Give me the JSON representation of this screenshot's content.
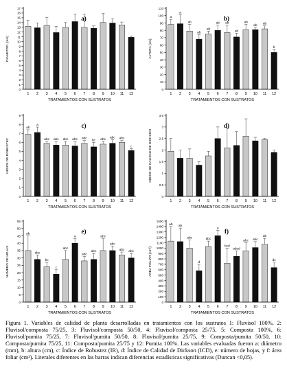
{
  "figure": {
    "caption": "Figura 1. Variables de calidad de planta desarrolladas en tratamientos con los sustratos 1: Fluvisol 100%, 2: Fluvisol/composta 75/25, 3: Fluvisol/composta 50/50, 4: Fluvisol/composta 25/75, 5: Composta 100%, 6: Fluvisol/pumita 75/25, 7: Fluvisol/pumita 50/50, 8: Fluvisol/pumita 25/75, 9: Composta/pumita 50/50, 10: Composta/pumita 75/25, 11: Composta/pumita 25/75 y 12: Pumita 100%. Las variables evaluadas fueron a: diámetro (mm), b: altura (cm), c: Índice de Robustez (IR), d: Índice de Calidad de Dickson (ICD), e: número de hojas, y f: área foliar (cm²). Literales diferentes en las barras indican diferencias estadísticas significativas (Duncan <0,05)."
  },
  "colors": {
    "light_bar": "#c8c8c8",
    "dark_bar": "#111111",
    "axis": "#000000"
  },
  "chart_data": [
    {
      "type": "bar",
      "panel": "a)",
      "xlabel": "TRATAMIENTOS CON SUSTRATOS",
      "ylabel": "DIAMETRO (mm)",
      "categories": [
        "1",
        "2",
        "3",
        "4",
        "5",
        "6",
        "7",
        "8",
        "9",
        "10",
        "11",
        "12"
      ],
      "values": [
        13.2,
        12.9,
        13.4,
        11.9,
        13.0,
        14.2,
        13.0,
        12.8,
        14.0,
        13.9,
        13.5,
        10.9
      ],
      "errors": [
        1.3,
        1.0,
        1.7,
        1.3,
        1.0,
        1.6,
        2.8,
        0.5,
        1.9,
        0.9,
        0.6,
        0.3
      ],
      "dark": [
        false,
        true,
        false,
        true,
        false,
        true,
        false,
        true,
        false,
        true,
        false,
        true
      ],
      "letters": [],
      "ylim": [
        0,
        17
      ],
      "yticks": [
        0,
        1,
        2,
        3,
        4,
        5,
        6,
        7,
        8,
        9,
        10,
        11,
        12,
        13,
        14,
        15,
        16,
        17
      ]
    },
    {
      "type": "bar",
      "panel": "b)",
      "xlabel": "TRATAMIENTOS CON SUSTRATOS",
      "ylabel": "ALTURA (cm)",
      "categories": [
        "1",
        "2",
        "3",
        "4",
        "5",
        "6",
        "7",
        "8",
        "9",
        "10",
        "11",
        "12"
      ],
      "values": [
        88,
        89,
        79,
        68,
        75,
        80,
        77,
        71,
        81,
        81,
        82,
        50
      ],
      "errors": [
        7,
        12,
        9,
        6,
        4,
        7,
        10,
        5,
        7,
        3,
        4,
        4
      ],
      "dark": [
        false,
        true,
        false,
        true,
        false,
        true,
        false,
        true,
        false,
        true,
        false,
        true
      ],
      "letters": [
        "a",
        "a",
        "ab",
        "ab",
        "ab",
        "ab",
        "ab",
        "ab",
        "ab",
        "ab",
        "ab",
        "b"
      ],
      "ylim": [
        0,
        110
      ],
      "yticks": [
        0,
        10,
        20,
        30,
        40,
        50,
        60,
        70,
        80,
        90,
        100,
        110
      ]
    },
    {
      "type": "bar",
      "panel": "c)",
      "xlabel": "TRATAMIENTOS CON SUSTRATOS",
      "ylabel": "INDICE DE ROBUSTEZ",
      "categories": [
        "1",
        "2",
        "3",
        "4",
        "5",
        "6",
        "7",
        "8",
        "9",
        "10",
        "11",
        "12"
      ],
      "values": [
        6.9,
        7.1,
        5.9,
        5.7,
        5.7,
        5.6,
        5.9,
        5.5,
        5.8,
        5.9,
        6.0,
        5.1
      ],
      "errors": [
        0.5,
        0.6,
        0.2,
        0.4,
        0.4,
        0.5,
        0.3,
        0.5,
        0.3,
        0.4,
        0.2,
        0.2
      ],
      "dark": [
        false,
        true,
        false,
        true,
        false,
        true,
        false,
        true,
        false,
        true,
        false,
        true
      ],
      "letters": [
        "ab",
        "a",
        "abc",
        "abc",
        "abc",
        "abc",
        "abc",
        "bc",
        "abc",
        "abc",
        "abc",
        "c"
      ],
      "ylim": [
        0,
        9
      ],
      "yticks": [
        0,
        1,
        2,
        3,
        4,
        5,
        6,
        7,
        8,
        9
      ]
    },
    {
      "type": "bar",
      "panel": "d)",
      "xlabel": "TRATAMIENTOS CON SUSTRATOS",
      "ylabel": "INDICE DE CALIDAD DE DICKSON",
      "categories": [
        "1",
        "2",
        "3",
        "4",
        "5",
        "6",
        "7",
        "8",
        "9",
        "10",
        "11",
        "12"
      ],
      "values": [
        1.95,
        1.65,
        1.65,
        1.35,
        1.75,
        2.5,
        2.1,
        2.2,
        2.6,
        2.4,
        2.45,
        1.9
      ],
      "errors": [
        0.55,
        0.35,
        0.4,
        0.15,
        0.2,
        0.5,
        0.85,
        0.6,
        0.75,
        0.15,
        0.05,
        0.1
      ],
      "dark": [
        false,
        true,
        false,
        true,
        false,
        true,
        false,
        true,
        false,
        true,
        false,
        true
      ],
      "letters": [],
      "ylim": [
        0,
        3.5
      ],
      "yticks": [
        0,
        0.5,
        1,
        1.5,
        2,
        2.5,
        3,
        3.5
      ]
    },
    {
      "type": "bar",
      "panel": "e)",
      "xlabel": "TRATAMIENTOS CON SUSTRATOS",
      "ylabel": "NUMERO DE HOJAS",
      "categories": [
        "1",
        "2",
        "3",
        "4",
        "5",
        "6",
        "7",
        "8",
        "9",
        "10",
        "11",
        "12"
      ],
      "values": [
        35,
        29,
        24,
        19,
        29,
        40,
        28,
        29,
        35,
        35,
        32,
        30
      ],
      "errors": [
        10,
        3,
        3,
        3,
        6,
        3,
        3,
        4,
        8,
        3,
        2,
        3
      ],
      "dark": [
        false,
        true,
        false,
        true,
        false,
        true,
        false,
        true,
        false,
        true,
        false,
        true
      ],
      "letters": [
        "ab",
        "abc",
        "bc",
        "c",
        "abc",
        "a",
        "abc",
        "abc",
        "abc",
        "abc",
        "abc",
        "abc"
      ],
      "ylim": [
        0,
        55
      ],
      "yticks": [
        0,
        5,
        10,
        15,
        20,
        25,
        30,
        35,
        40,
        45,
        50,
        55
      ]
    },
    {
      "type": "bar",
      "panel": "f)",
      "xlabel": "TRATAMIENTOS CON SUSTRATOS",
      "ylabel": "AREA FOLIAR (cm²)",
      "categories": [
        "1",
        "2",
        "3",
        "4",
        "5",
        "6",
        "7",
        "8",
        "9",
        "10",
        "11",
        "12"
      ],
      "values": [
        1130,
        1120,
        1000,
        580,
        1030,
        1230,
        720,
        850,
        950,
        1010,
        1070,
        640
      ],
      "errors": [
        270,
        250,
        150,
        120,
        100,
        100,
        280,
        100,
        150,
        110,
        110,
        100
      ],
      "dark": [
        false,
        true,
        false,
        true,
        false,
        true,
        false,
        true,
        false,
        true,
        false,
        true
      ],
      "letters": [
        "ab",
        "ab",
        "abc",
        "d",
        "abc",
        "a",
        "bcd",
        "abcd",
        "abc",
        "abc",
        "ab",
        "dc"
      ],
      "ylim": [
        0,
        1500
      ],
      "yticks": [
        0,
        100,
        200,
        300,
        400,
        500,
        600,
        700,
        800,
        900,
        1000,
        1100,
        1200,
        1300,
        1400,
        1500
      ]
    }
  ]
}
